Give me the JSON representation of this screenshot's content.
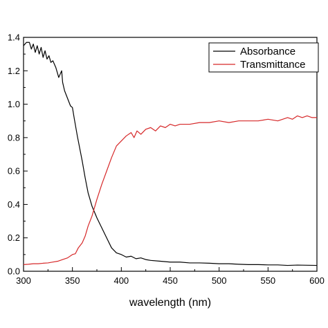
{
  "chart_data": {
    "type": "line",
    "xlabel": "wavelength (nm)",
    "ylabel": "",
    "xlim": [
      300,
      600
    ],
    "ylim": [
      0.0,
      1.4
    ],
    "xticks": [
      "300",
      "350",
      "400",
      "450",
      "500",
      "550",
      "600"
    ],
    "yticks": [
      "0.0",
      "0.2",
      "0.4",
      "0.6",
      "0.8",
      "1.0",
      "1.2",
      "1.4"
    ],
    "grid": false,
    "legend_position": "top-right",
    "series": [
      {
        "name": "Absorbance",
        "color": "#000000",
        "x": [
          300,
          303,
          306,
          308,
          310,
          312,
          314,
          316,
          318,
          320,
          322,
          324,
          326,
          328,
          330,
          333,
          336,
          339,
          340,
          342,
          344,
          346,
          348,
          350,
          352,
          355,
          358,
          360,
          363,
          366,
          370,
          375,
          380,
          385,
          390,
          395,
          400,
          405,
          410,
          415,
          420,
          425,
          430,
          440,
          450,
          460,
          470,
          480,
          490,
          500,
          510,
          520,
          530,
          540,
          550,
          560,
          570,
          580,
          590,
          600
        ],
        "values": [
          1.35,
          1.37,
          1.37,
          1.33,
          1.36,
          1.31,
          1.35,
          1.3,
          1.34,
          1.28,
          1.32,
          1.27,
          1.29,
          1.25,
          1.26,
          1.22,
          1.16,
          1.2,
          1.13,
          1.08,
          1.05,
          1.02,
          0.99,
          0.98,
          0.91,
          0.81,
          0.72,
          0.66,
          0.56,
          0.47,
          0.39,
          0.32,
          0.26,
          0.2,
          0.14,
          0.11,
          0.1,
          0.085,
          0.09,
          0.075,
          0.08,
          0.07,
          0.065,
          0.06,
          0.055,
          0.055,
          0.05,
          0.05,
          0.048,
          0.045,
          0.045,
          0.042,
          0.04,
          0.04,
          0.038,
          0.038,
          0.035,
          0.037,
          0.036,
          0.035
        ]
      },
      {
        "name": "Transmittance",
        "color": "#d62728",
        "x": [
          300,
          305,
          310,
          315,
          320,
          325,
          330,
          335,
          340,
          345,
          350,
          353,
          356,
          360,
          363,
          366,
          370,
          375,
          380,
          385,
          390,
          395,
          400,
          405,
          410,
          413,
          416,
          420,
          425,
          430,
          435,
          440,
          445,
          450,
          455,
          460,
          470,
          480,
          490,
          500,
          510,
          520,
          530,
          540,
          550,
          560,
          570,
          575,
          580,
          585,
          590,
          595,
          600
        ],
        "values": [
          0.04,
          0.042,
          0.045,
          0.045,
          0.048,
          0.05,
          0.055,
          0.06,
          0.07,
          0.08,
          0.1,
          0.105,
          0.14,
          0.17,
          0.21,
          0.27,
          0.33,
          0.43,
          0.52,
          0.6,
          0.68,
          0.75,
          0.78,
          0.81,
          0.83,
          0.8,
          0.84,
          0.82,
          0.85,
          0.86,
          0.84,
          0.87,
          0.86,
          0.88,
          0.87,
          0.88,
          0.88,
          0.89,
          0.89,
          0.9,
          0.89,
          0.9,
          0.9,
          0.9,
          0.91,
          0.9,
          0.92,
          0.91,
          0.93,
          0.92,
          0.93,
          0.92,
          0.92
        ]
      }
    ]
  }
}
